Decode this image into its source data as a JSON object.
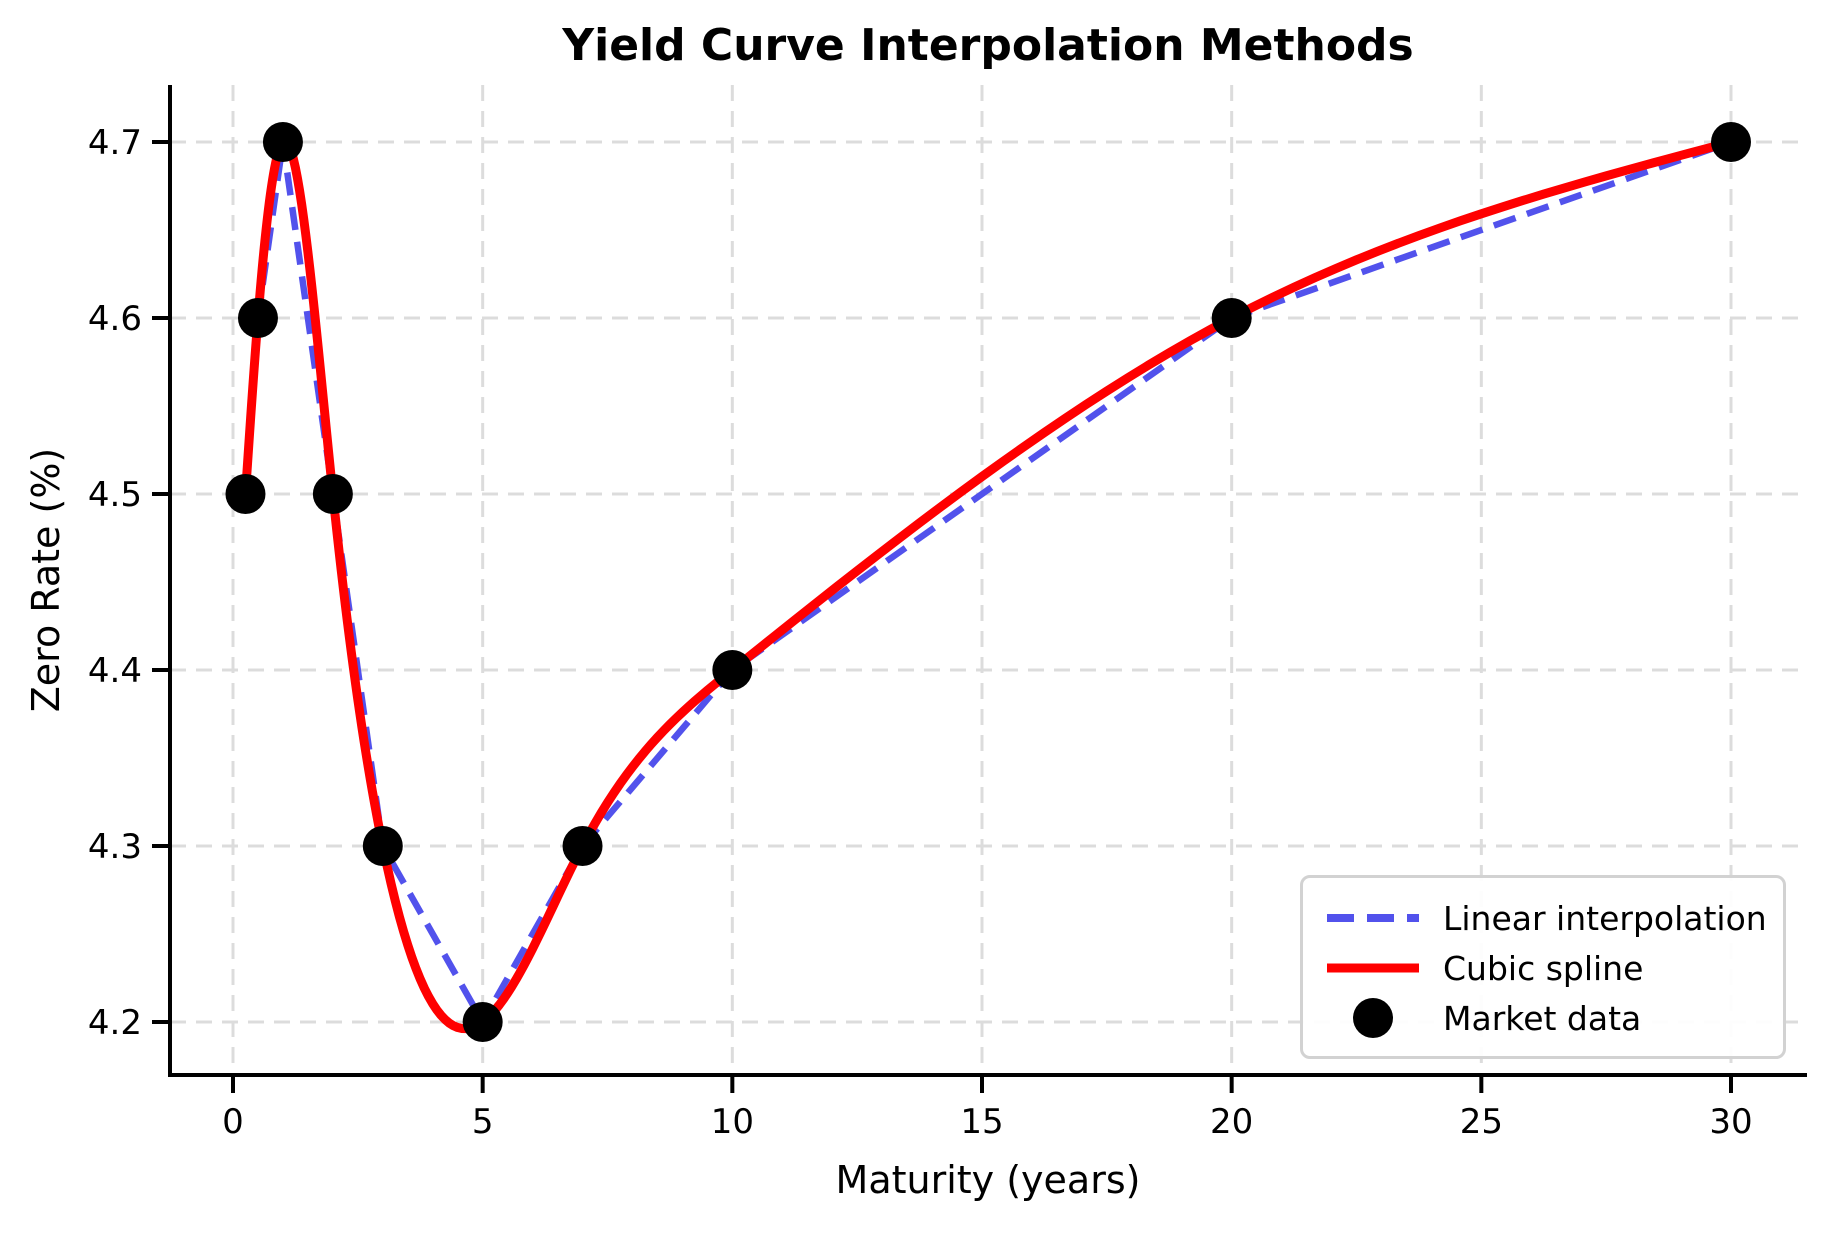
{
  "figure": {
    "title": "Yield Curve Interpolation Methods",
    "xlabel": "Maturity (years)",
    "ylabel": "Zero Rate (%)"
  },
  "chart_data": {
    "type": "line",
    "title": "Yield Curve Interpolation Methods",
    "xlabel": "Maturity (years)",
    "ylabel": "Zero Rate (%)",
    "grid": true,
    "legend_position": "lower right",
    "x_ticks": [
      0,
      5,
      10,
      15,
      20,
      25,
      30
    ],
    "x_tick_labels": [
      "0",
      "5",
      "10",
      "15",
      "20",
      "25",
      "30"
    ],
    "y_ticks": [
      4.2,
      4.3,
      4.4,
      4.5,
      4.6,
      4.7
    ],
    "y_tick_labels": [
      "4.2",
      "4.3",
      "4.4",
      "4.5",
      "4.6",
      "4.7"
    ],
    "xlim": [
      -1.26,
      31.5
    ],
    "ylim": [
      4.167,
      4.768
    ],
    "market_data": {
      "x": [
        0.25,
        0.5,
        1,
        2,
        3,
        5,
        7,
        10,
        20,
        30
      ],
      "y": [
        4.5,
        4.6,
        4.7,
        4.5,
        4.3,
        4.2,
        4.3,
        4.4,
        4.6,
        4.7
      ]
    },
    "series": [
      {
        "name": "Linear interpolation",
        "style": "dashed",
        "interpolation": "linear",
        "color": "#5252ec"
      },
      {
        "name": "Cubic spline",
        "style": "solid",
        "interpolation": "natural-cubic-spline",
        "color": "#ff0000"
      },
      {
        "name": "Market data",
        "style": "scatter",
        "color": "#000000"
      }
    ],
    "colors": {
      "grid": "#dcdcdc",
      "spine": "#000000",
      "tick": "#000000"
    }
  },
  "legend": {
    "items": [
      {
        "label": "Linear interpolation"
      },
      {
        "label": "Cubic spline"
      },
      {
        "label": "Market data"
      }
    ]
  }
}
